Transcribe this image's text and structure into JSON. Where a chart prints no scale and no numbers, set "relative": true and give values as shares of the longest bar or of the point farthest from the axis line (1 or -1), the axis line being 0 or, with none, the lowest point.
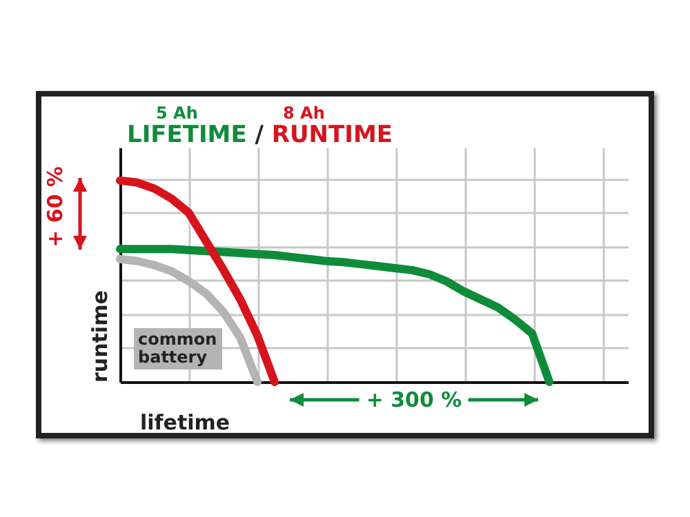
{
  "chart_data": {
    "type": "line",
    "title": "LIFETIME / RUNTIME",
    "xlabel": "lifetime",
    "ylabel": "runtime",
    "relative": true,
    "grid": true,
    "legend": false,
    "marker": "none",
    "line_style": "solid",
    "annotations": [
      "5 Ah",
      "8 Ah",
      "+ 60 %",
      "+ 300 %"
    ],
    "categories": [
      null,
      null,
      null,
      null,
      null,
      null,
      null,
      null,
      null,
      null,
      null,
      null,
      null,
      null,
      null,
      null,
      null,
      null,
      null,
      null,
      null,
      null,
      null,
      null,
      null,
      null
    ],
    "series": [
      {
        "name": "common battery",
        "color": "#b4b4b4",
        "values": [
          0.61,
          0.6,
          0.58,
          0.55,
          0.5,
          0.44,
          0.35,
          0.22,
          0,
          null,
          null,
          null,
          null,
          null,
          null,
          null,
          null,
          null,
          null,
          null,
          null,
          null,
          null,
          null,
          null,
          null
        ]
      },
      {
        "color": "#0f8c3a",
        "values": [
          0.66,
          0.66,
          0.66,
          0.66,
          0.655,
          0.65,
          0.645,
          0.64,
          0.635,
          0.63,
          0.62,
          0.61,
          0.6,
          0.595,
          0.585,
          0.575,
          0.565,
          0.555,
          0.535,
          0.5,
          0.45,
          0.41,
          0.37,
          0.31,
          0.24,
          0
        ]
      },
      {
        "color": "#d7141e",
        "values": [
          1,
          0.99,
          0.96,
          0.91,
          0.84,
          0.7,
          0.56,
          0.41,
          0.23,
          0,
          null,
          null,
          null,
          null,
          null,
          null,
          null,
          null,
          null,
          null,
          null,
          null,
          null,
          null,
          null,
          null
        ]
      }
    ]
  }
}
